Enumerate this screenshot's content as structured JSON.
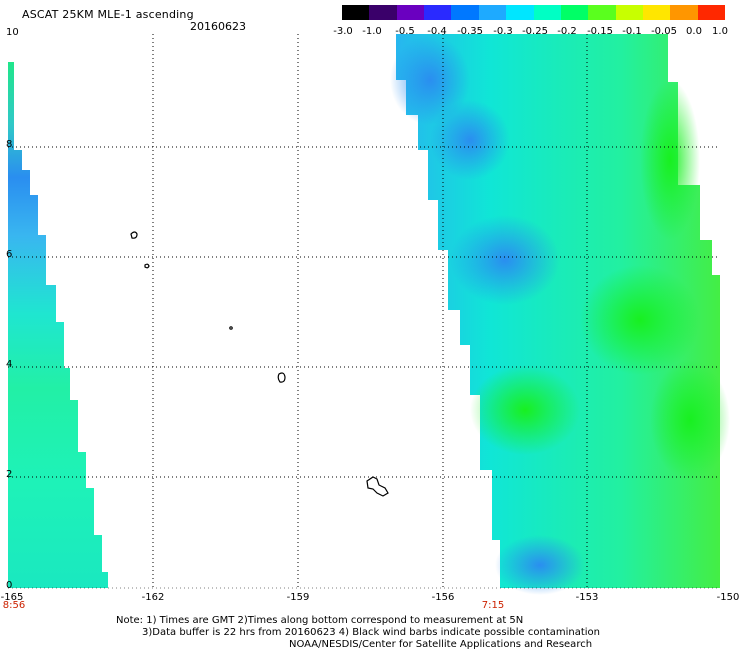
{
  "header": {
    "title": "ASCAT 25KM MLE-1 ascending",
    "date": "20160623"
  },
  "colorbar": {
    "labels": [
      "-3.0",
      "-1.0",
      "-0.5",
      "-0.4",
      "-0.35",
      "-0.3",
      "-0.25",
      "-0.2",
      "-0.15",
      "-0.1",
      "-0.05",
      "0.0",
      "1.0"
    ],
    "colors": [
      "#000000",
      "#3a006a",
      "#6a00c0",
      "#2a2aff",
      "#0078ff",
      "#1eaaff",
      "#00e6ff",
      "#00ffc4",
      "#00ff66",
      "#5aff1e",
      "#c8ff00",
      "#ffe600",
      "#ff9600",
      "#ff2800"
    ]
  },
  "axes": {
    "y_ticks": [
      "10",
      "8",
      "6",
      "4",
      "2",
      "0"
    ],
    "x_ticks": [
      "-165",
      "-162",
      "-159",
      "-156",
      "-153",
      "-150"
    ]
  },
  "pass_times": [
    "8:56",
    "7:15"
  ],
  "notes": [
    "Note: 1) Times are GMT 2)Times along bottom correspond to measurement at 5N",
    "3)Data buffer is 22 hrs from 20160623 4) Black wind barbs indicate possible contamination",
    "NOAA/NESDIS/Center for Satellite Applications and Research"
  ]
}
